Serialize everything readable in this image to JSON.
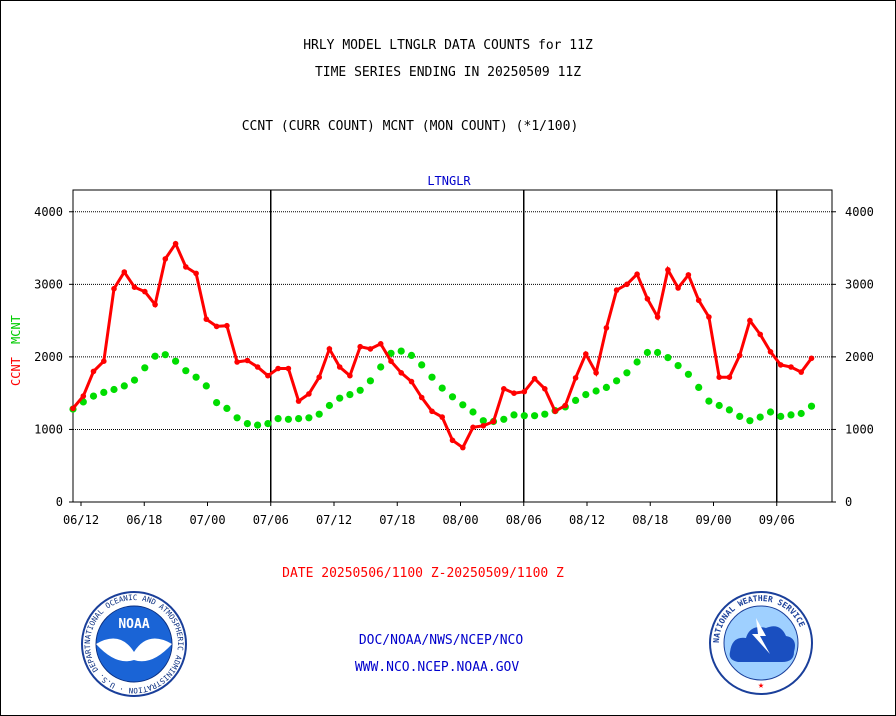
{
  "header": {
    "title_line1": "HRLY MODEL LTNGLR DATA COUNTS for 11Z",
    "title_line2": "TIME SERIES ENDING IN 20250509 11Z",
    "subtitle": "CCNT (CURR COUNT) MCNT (MON COUNT) (*1/100)"
  },
  "footer": {
    "date_range": "DATE 20250506/1100 Z-20250509/1100 Z",
    "org_line": "DOC/NOAA/NWS/NCEP/NCO",
    "url_line": "WWW.NCO.NCEP.NOAA.GOV"
  },
  "logos": {
    "noaa_text": "NOAA",
    "noaa_ring": "NATIONAL OCEANIC AND ATMOSPHERIC ADMINISTRATION · U.S. DEPARTMENT OF COMMERCE ·",
    "nws_ring": "NATIONAL WEATHER SERVICE"
  },
  "colors": {
    "ccnt": "#ff0000",
    "mcnt": "#00dd00",
    "plot_label": "#0000cc"
  },
  "chart_data": {
    "type": "line",
    "title": "LTNGLR",
    "ylabel_red": "CCNT",
    "ylabel_green": "MCNT",
    "ylim": [
      0,
      4300
    ],
    "yticks": [
      0,
      1000,
      2000,
      3000,
      4000
    ],
    "x_ticks": [
      "06/12",
      "06/18",
      "07/00",
      "07/06",
      "07/12",
      "07/18",
      "08/00",
      "08/06",
      "08/12",
      "08/18",
      "09/00",
      "09/06"
    ],
    "x_range_hours": [
      0,
      74
    ],
    "grid": true,
    "series": [
      {
        "name": "CCNT",
        "color": "#ff0000",
        "values": [
          1290,
          1460,
          1800,
          1940,
          2940,
          3170,
          2960,
          2900,
          2720,
          3350,
          3560,
          3240,
          3150,
          2520,
          2420,
          2430,
          1930,
          1950,
          1860,
          1740,
          1840,
          1840,
          1390,
          1490,
          1720,
          2110,
          1860,
          1740,
          2140,
          2110,
          2180,
          1940,
          1780,
          1660,
          1440,
          1250,
          1170,
          850,
          750,
          1030,
          1050,
          1110,
          1560,
          1500,
          1520,
          1700,
          1560,
          1250,
          1330,
          1710,
          2040,
          1780,
          2400,
          2920,
          3000,
          3140,
          2800,
          2550,
          3200,
          2950,
          3130,
          2780,
          2550,
          1720,
          1720,
          2020,
          2500,
          2310,
          2070,
          1890,
          1860,
          1790,
          1980
        ]
      },
      {
        "name": "MCNT",
        "color": "#00dd00",
        "values": [
          1280,
          1380,
          1460,
          1510,
          1550,
          1600,
          1680,
          1850,
          2010,
          2030,
          1940,
          1810,
          1720,
          1600,
          1370,
          1290,
          1160,
          1080,
          1060,
          1080,
          1150,
          1140,
          1150,
          1160,
          1210,
          1330,
          1430,
          1480,
          1540,
          1670,
          1860,
          2050,
          2080,
          2020,
          1890,
          1720,
          1570,
          1450,
          1340,
          1240,
          1120,
          1110,
          1140,
          1200,
          1190,
          1190,
          1210,
          1260,
          1310,
          1400,
          1480,
          1530,
          1580,
          1670,
          1780,
          1930,
          2060,
          2060,
          1990,
          1880,
          1760,
          1580,
          1390,
          1330,
          1270,
          1180,
          1120,
          1170,
          1240,
          1180,
          1200,
          1220,
          1320
        ]
      }
    ]
  }
}
